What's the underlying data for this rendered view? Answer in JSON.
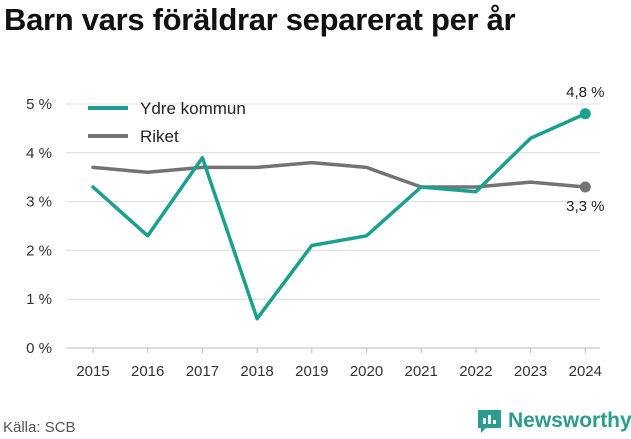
{
  "title": "Barn vars föräldrar separerat per år",
  "source": "Källa: SCB",
  "brand": "Newsworthy",
  "colors": {
    "primary": "#1aa08e",
    "secondary": "#737373",
    "grid": "#dcdcdc",
    "brand": "#2a9d8f"
  },
  "chart_data": {
    "type": "line",
    "title": "Barn vars föräldrar separerat per år",
    "x": [
      "2015",
      "2016",
      "2017",
      "2018",
      "2019",
      "2020",
      "2021",
      "2022",
      "2023",
      "2024"
    ],
    "ylim": [
      0,
      5
    ],
    "yticks": [
      0,
      1,
      2,
      3,
      4,
      5
    ],
    "ytick_labels": [
      "0 %",
      "1 %",
      "2 %",
      "3 %",
      "4 %",
      "5 %"
    ],
    "grid": "horizontal",
    "legend_position": "top-left",
    "series": [
      {
        "name": "Ydre kommun",
        "color": "#1aa08e",
        "values": [
          3.3,
          2.3,
          3.9,
          0.6,
          2.1,
          2.3,
          3.3,
          3.2,
          4.3,
          4.8
        ],
        "end_label": "4,8 %"
      },
      {
        "name": "Riket",
        "color": "#737373",
        "values": [
          3.7,
          3.6,
          3.7,
          3.7,
          3.8,
          3.7,
          3.3,
          3.3,
          3.4,
          3.3
        ],
        "end_label": "3,3 %"
      }
    ]
  }
}
